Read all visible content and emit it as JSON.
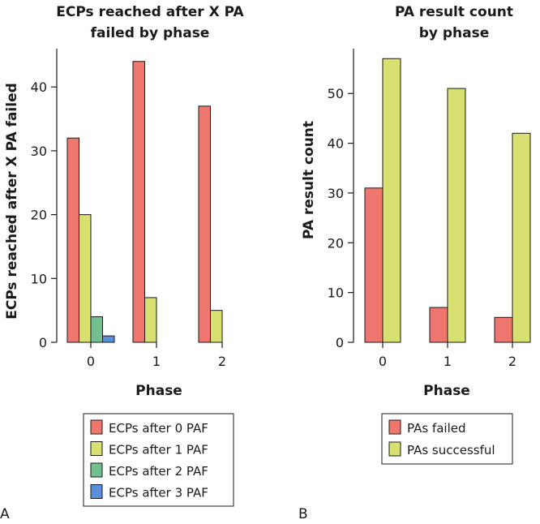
{
  "chart_data": [
    {
      "type": "bar",
      "panel_label": "A",
      "title": [
        "ECPs reached after X PA",
        "failed by phase"
      ],
      "xlabel": "Phase",
      "ylabel": "ECPs reached after X PA failed",
      "categories": [
        "0",
        "1",
        "2"
      ],
      "ylim": [
        0,
        46
      ],
      "yticks": [
        0,
        10,
        20,
        30,
        40
      ],
      "series": [
        {
          "name": "ECPs after 0 PAF",
          "color": "#f0776f",
          "values": [
            32,
            44,
            37
          ]
        },
        {
          "name": "ECPs after 1 PAF",
          "color": "#d7e070",
          "values": [
            20,
            7,
            5
          ]
        },
        {
          "name": "ECPs after 2 PAF",
          "color": "#72c08f",
          "values": [
            4,
            0,
            0
          ]
        },
        {
          "name": "ECPs after 3 PAF",
          "color": "#5b8fd9",
          "values": [
            1,
            0,
            0
          ]
        }
      ],
      "legend_position": "bottom"
    },
    {
      "type": "bar",
      "panel_label": "B",
      "title": [
        "PA result count",
        "by phase"
      ],
      "xlabel": "Phase",
      "ylabel": "PA result count",
      "categories": [
        "0",
        "1",
        "2"
      ],
      "ylim": [
        0,
        59
      ],
      "yticks": [
        0,
        10,
        20,
        30,
        40,
        50
      ],
      "series": [
        {
          "name": "PAs failed",
          "color": "#f0776f",
          "values": [
            31,
            7,
            5
          ]
        },
        {
          "name": "PAs successful",
          "color": "#d7e070",
          "values": [
            57,
            51,
            42
          ]
        }
      ],
      "legend_position": "bottom"
    }
  ]
}
